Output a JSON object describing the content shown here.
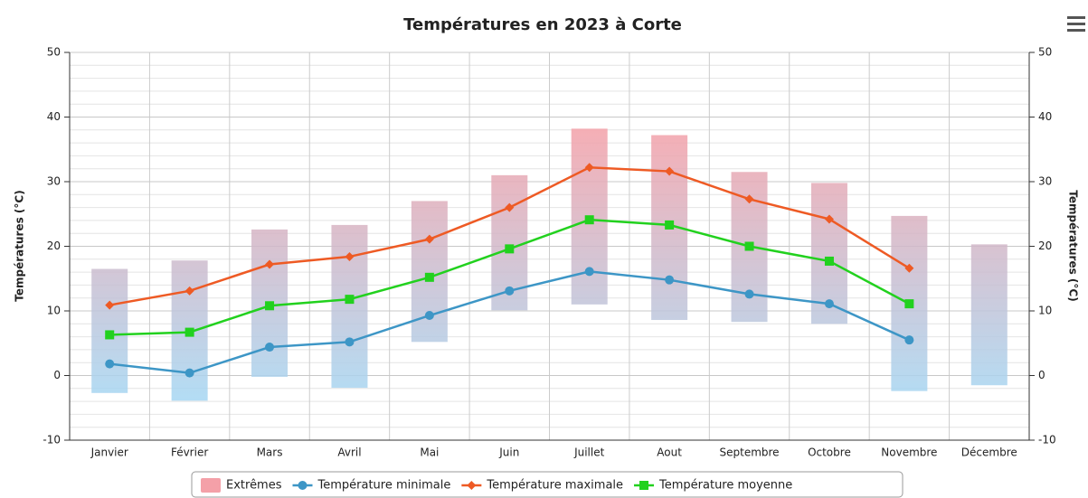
{
  "chart_data": {
    "type": "combo",
    "title": "Températures en 2023 à Corte",
    "categories": [
      "Janvier",
      "Février",
      "Mars",
      "Avril",
      "Mai",
      "Juin",
      "Juillet",
      "Aout",
      "Septembre",
      "Octobre",
      "Novembre",
      "Décembre"
    ],
    "ylabel": "Températures (°C)",
    "y2label": "Températures (°C)",
    "ylim": [
      -10,
      50
    ],
    "yticks": [
      -10,
      0,
      10,
      20,
      30,
      40,
      50
    ],
    "y2lim": [
      -10,
      50
    ],
    "y2ticks": [
      -10,
      0,
      10,
      20,
      30,
      40,
      50
    ],
    "grid": true,
    "legend": "bottom",
    "series": [
      {
        "name": "Extrêmes",
        "type": "columnrange",
        "color": "#f4a0a8",
        "color2": "#a6d6f2",
        "low": [
          -2.7,
          -3.9,
          -0.2,
          -1.9,
          5.2,
          10.1,
          11,
          8.6,
          8.3,
          8,
          -2.4,
          -1.5
        ],
        "high": [
          16.5,
          17.8,
          22.6,
          23.3,
          27,
          31,
          38.2,
          37.2,
          31.5,
          29.8,
          24.7,
          20.3
        ]
      },
      {
        "name": "Température minimale",
        "type": "line",
        "marker": "circle",
        "color": "#3d96c6",
        "values": [
          1.8,
          0.4,
          4.4,
          5.2,
          9.3,
          13.1,
          16.1,
          14.8,
          12.6,
          11.1,
          5.5,
          null
        ]
      },
      {
        "name": "Température maximale",
        "type": "line",
        "marker": "diamond",
        "color": "#ee5a24",
        "values": [
          10.9,
          13.1,
          17.2,
          18.4,
          21.1,
          26,
          32.2,
          31.6,
          27.3,
          24.2,
          16.6,
          null
        ]
      },
      {
        "name": "Température moyenne",
        "type": "line",
        "marker": "square",
        "color": "#22d11e",
        "values": [
          6.3,
          6.7,
          10.8,
          11.8,
          15.2,
          19.6,
          24.1,
          23.3,
          20,
          17.7,
          11.1,
          null
        ]
      }
    ]
  }
}
